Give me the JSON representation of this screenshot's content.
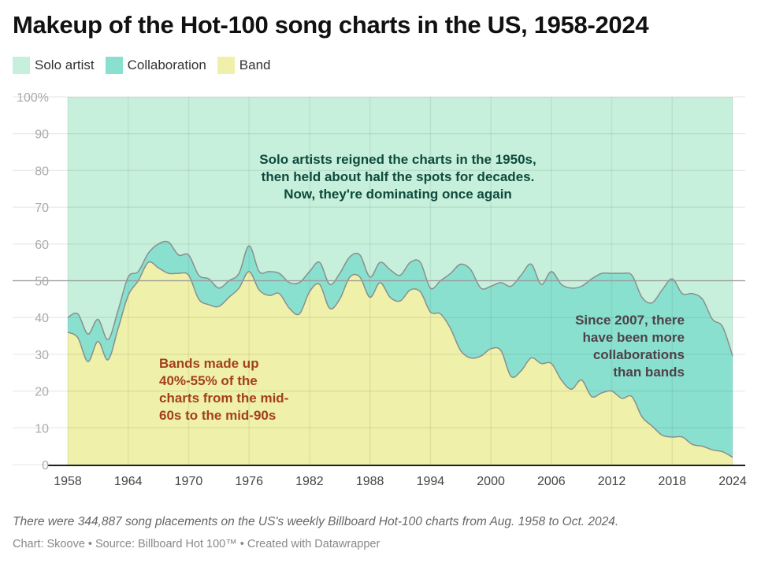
{
  "chart_data": {
    "type": "area",
    "stacked": true,
    "title": "Makeup of the Hot-100 song charts in the US, 1958-2024",
    "xlabel": "",
    "ylabel": "",
    "ylim": [
      0,
      100
    ],
    "xlim": [
      1958,
      2024
    ],
    "y_ticks": [
      "100%",
      "90",
      "80",
      "70",
      "60",
      "50",
      "40",
      "30",
      "20",
      "10",
      "0"
    ],
    "x_ticks": [
      "1958",
      "1964",
      "1970",
      "1976",
      "1982",
      "1988",
      "1994",
      "2000",
      "2006",
      "2012",
      "2018",
      "2024"
    ],
    "grid": true,
    "reference_line": 50,
    "legend_position": "top-left",
    "x": [
      1958,
      1959,
      1960,
      1961,
      1962,
      1963,
      1964,
      1965,
      1966,
      1967,
      1968,
      1969,
      1970,
      1971,
      1972,
      1973,
      1974,
      1975,
      1976,
      1977,
      1978,
      1979,
      1980,
      1981,
      1982,
      1983,
      1984,
      1985,
      1986,
      1987,
      1988,
      1989,
      1990,
      1991,
      1992,
      1993,
      1994,
      1995,
      1996,
      1997,
      1998,
      1999,
      2000,
      2001,
      2002,
      2003,
      2004,
      2005,
      2006,
      2007,
      2008,
      2009,
      2010,
      2011,
      2012,
      2013,
      2014,
      2015,
      2016,
      2017,
      2018,
      2019,
      2020,
      2021,
      2022,
      2023,
      2024
    ],
    "series": [
      {
        "name": "Band",
        "color": "#eff0a9",
        "values": [
          36,
          34.5,
          28,
          33.5,
          28.5,
          37,
          46,
          50,
          55,
          53.5,
          52,
          52,
          51.5,
          45,
          43.5,
          43,
          45.5,
          48,
          52.5,
          47.5,
          46,
          46.5,
          42.5,
          41,
          47,
          49,
          42.5,
          45,
          51,
          51,
          45.5,
          49.5,
          45.5,
          44.5,
          47.5,
          47,
          41.5,
          41,
          37,
          31,
          29,
          29.5,
          31.5,
          31,
          24,
          25.5,
          29,
          27.5,
          27.5,
          23,
          20.5,
          23,
          18.5,
          19.5,
          20,
          18,
          18.5,
          13,
          10.5,
          8,
          7.5,
          7.5,
          5.5,
          5,
          4,
          3.5,
          2
        ]
      },
      {
        "name": "Collaboration",
        "color": "#8ae0cf",
        "values": [
          4,
          6.5,
          7.5,
          6,
          5.5,
          5,
          5,
          2.5,
          2.5,
          6.5,
          8.5,
          5,
          5.5,
          6.5,
          7,
          5,
          4.5,
          4,
          7,
          5,
          6.5,
          5.5,
          7,
          8.5,
          5.5,
          6,
          6.5,
          7,
          5.5,
          6,
          5.5,
          5.5,
          7.5,
          7,
          7.5,
          8,
          6.5,
          9,
          15,
          23.5,
          24,
          18.5,
          17,
          18.5,
          24.5,
          26,
          25.5,
          21.5,
          25,
          26,
          27.5,
          25.5,
          32,
          32.5,
          32,
          34,
          33,
          32.5,
          33.5,
          39.5,
          43,
          39,
          41,
          40,
          35.5,
          34,
          27.5
        ]
      },
      {
        "name": "Solo artist",
        "color": "#c6f0db",
        "values": [
          60,
          59,
          64.5,
          60.5,
          66,
          58,
          49,
          47.5,
          42.5,
          40,
          39.5,
          43,
          43,
          48.5,
          49.5,
          52,
          50,
          48,
          40.5,
          47.5,
          47.5,
          48,
          50.5,
          50.5,
          47.5,
          45,
          51,
          48,
          43.5,
          43,
          49,
          45,
          47,
          48.5,
          45,
          45,
          52,
          50,
          48,
          45.5,
          47,
          52,
          51.5,
          50.5,
          51.5,
          48.5,
          45.5,
          51,
          47.5,
          51,
          52,
          51.5,
          49.5,
          48,
          48,
          48,
          48.5,
          54.5,
          56,
          52.5,
          49.5,
          53.5,
          53.5,
          55,
          60.5,
          62.5,
          70.5
        ]
      }
    ],
    "annotations": [
      {
        "text": [
          "Solo artists reigned the charts in the 1950s,",
          "then held about half the spots for decades.",
          "Now, they're dominating once again"
        ],
        "color": "#0f4a3d"
      },
      {
        "text": [
          "Bands made up",
          "40%-55% of the",
          "charts from the mid-",
          "60s to the mid-90s"
        ],
        "color": "#a3401b"
      },
      {
        "text": [
          "Since 2007, there",
          "have been more",
          "collaborations",
          "than bands"
        ],
        "color": "#4d4249"
      }
    ]
  },
  "legend": [
    {
      "label": "Solo artist",
      "color": "#c6f0db"
    },
    {
      "label": "Collaboration",
      "color": "#8ae0cf"
    },
    {
      "label": "Band",
      "color": "#eff0a9"
    }
  ],
  "footer": {
    "note": "There were 344,887 song placements on the US's weekly Billboard Hot-100 charts from Aug. 1958 to Oct. 2024.",
    "credits": "Chart: Skoove • Source: Billboard Hot 100™ • Created with Datawrapper"
  }
}
